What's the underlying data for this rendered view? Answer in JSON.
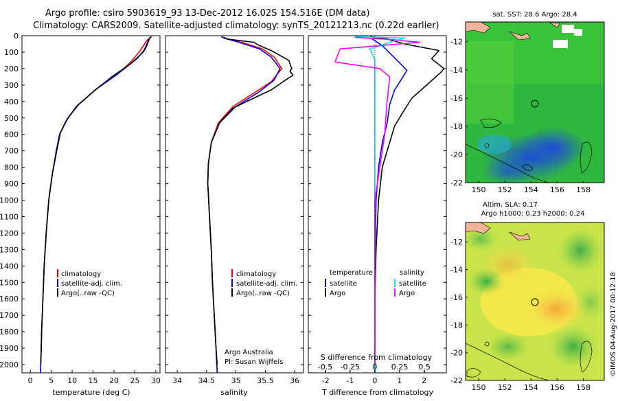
{
  "header": {
    "line1": "Argo profile: csiro 5903619_93 13-Dec-2012 16.02S 154.516E (DM data)",
    "line2": "Climatology: CARS2009. Satellite-adjusted climatology: synTS_20121213.nc (0.22d earlier)"
  },
  "colors": {
    "climatology": "#ff0000",
    "satellite": "#0000ff",
    "argo": "#000000",
    "sal_satellite": "#00e0ff",
    "sal_argo": "#ff00ff"
  },
  "depth_ticks": [
    "0",
    "100",
    "200",
    "300",
    "400",
    "500",
    "600",
    "700",
    "800",
    "900",
    "1000",
    "1100",
    "1200",
    "1300",
    "1400",
    "1500",
    "1600",
    "1700",
    "1800",
    "1900",
    "2000"
  ],
  "panels": {
    "temperature": {
      "xlabel": "temperature (deg C)",
      "xticks": [
        "0",
        "5",
        "10",
        "15",
        "20",
        "25",
        "30"
      ],
      "legend": [
        "climatology",
        "satellite-adj. clim.",
        "Argo(..raw -QC)"
      ]
    },
    "salinity": {
      "xlabel": "salinity",
      "xticks": [
        "34",
        "34.5",
        "35",
        "35.5",
        "36"
      ],
      "legend": [
        "climatology",
        "satellite-adj. clim.",
        "Argo(..raw -QC)"
      ],
      "note1": "Argo Australia",
      "note2": "PI: Susan Wijffels"
    },
    "difference": {
      "xlabel_bottom": "T difference from climatology",
      "xlabel_top": "S difference from climatology",
      "t_ticks": [
        "-2",
        "-1",
        "0",
        "1",
        "2"
      ],
      "s_ticks": [
        "-0.5",
        "-0.25",
        "0",
        "0.25",
        "0.5"
      ],
      "legend_temp_title": "temperature",
      "legend_sal_title": "salinity",
      "legend_satellite": "satellite",
      "legend_argo": "Argo"
    },
    "sst_map": {
      "title": "sat. SST: 28.6  Argo: 28.4",
      "lat_ticks": [
        "-12",
        "-14",
        "-16",
        "-18",
        "-20",
        "-22"
      ],
      "lon_ticks": [
        "150",
        "152",
        "154",
        "156",
        "158"
      ]
    },
    "sla_map": {
      "title1": "Altim. SLA: 0.17",
      "title2": "Argo h1000: 0.23  h2000: 0.24",
      "lat_ticks": [
        "-12",
        "-14",
        "-16",
        "-18",
        "-20",
        "-22"
      ],
      "lon_ticks": [
        "150",
        "152",
        "154",
        "156",
        "158"
      ]
    }
  },
  "watermark": "©IMOS 04-Aug-2017 00:12:18",
  "chart_data": [
    {
      "type": "line",
      "title": "",
      "xlabel": "temperature (deg C)",
      "ylabel": "",
      "xlim": [
        -2,
        31
      ],
      "ylim": [
        2050,
        0
      ],
      "series": [
        {
          "name": "climatology",
          "points": [
            [
              29,
              5
            ],
            [
              28,
              25
            ],
            [
              26,
              100
            ],
            [
              24,
              160
            ],
            [
              21,
              230
            ],
            [
              16,
              320
            ],
            [
              11,
              430
            ],
            [
              8.5,
              520
            ],
            [
              7,
              600
            ],
            [
              6.2,
              700
            ],
            [
              5.2,
              850
            ],
            [
              4.4,
              1000
            ],
            [
              3.8,
              1200
            ],
            [
              3.3,
              1400
            ],
            [
              3,
              1600
            ],
            [
              2.7,
              1800
            ],
            [
              2.5,
              2000
            ],
            [
              2.4,
              2050
            ]
          ]
        },
        {
          "name": "satellite-adj. clim.",
          "points": [
            [
              28.8,
              5
            ],
            [
              28.2,
              30
            ],
            [
              27,
              100
            ],
            [
              24,
              170
            ],
            [
              20.5,
              240
            ],
            [
              15.5,
              330
            ],
            [
              11,
              430
            ],
            [
              8.5,
              520
            ],
            [
              7,
              600
            ],
            [
              6.2,
              700
            ],
            [
              5.2,
              850
            ],
            [
              4.4,
              1000
            ],
            [
              3.8,
              1200
            ],
            [
              3.3,
              1400
            ],
            [
              3,
              1600
            ],
            [
              2.7,
              1800
            ],
            [
              2.5,
              2000
            ],
            [
              2.4,
              2050
            ]
          ]
        },
        {
          "name": "Argo(..raw -QC)",
          "points": [
            [
              28.6,
              10
            ],
            [
              28.3,
              30
            ],
            [
              27.5,
              80
            ],
            [
              25.5,
              140
            ],
            [
              23.5,
              180
            ],
            [
              20,
              240
            ],
            [
              15.5,
              330
            ],
            [
              11.5,
              420
            ],
            [
              9,
              500
            ],
            [
              7.2,
              590
            ],
            [
              6.3,
              700
            ],
            [
              5.2,
              850
            ],
            [
              4.4,
              1000
            ],
            [
              3.8,
              1200
            ],
            [
              3.3,
              1400
            ],
            [
              3,
              1600
            ],
            [
              2.7,
              1800
            ],
            [
              2.5,
              2000
            ]
          ]
        }
      ]
    },
    {
      "type": "line",
      "title": "",
      "xlabel": "salinity",
      "ylabel": "",
      "xlim": [
        33.8,
        36.15
      ],
      "ylim": [
        2050,
        0
      ],
      "series": [
        {
          "name": "climatology",
          "points": [
            [
              34.75,
              5
            ],
            [
              34.8,
              15
            ],
            [
              35.1,
              40
            ],
            [
              35.45,
              80
            ],
            [
              35.65,
              130
            ],
            [
              35.78,
              200
            ],
            [
              35.6,
              280
            ],
            [
              35.3,
              350
            ],
            [
              34.95,
              430
            ],
            [
              34.7,
              530
            ],
            [
              34.58,
              650
            ],
            [
              34.53,
              780
            ],
            [
              34.52,
              900
            ],
            [
              34.55,
              1100
            ],
            [
              34.58,
              1300
            ],
            [
              34.6,
              1500
            ],
            [
              34.63,
              1700
            ],
            [
              34.66,
              1900
            ],
            [
              34.68,
              2050
            ]
          ]
        },
        {
          "name": "satellite-adj. clim.",
          "points": [
            [
              34.75,
              5
            ],
            [
              34.8,
              15
            ],
            [
              35.05,
              40
            ],
            [
              35.4,
              80
            ],
            [
              35.6,
              130
            ],
            [
              35.75,
              200
            ],
            [
              35.65,
              270
            ],
            [
              35.4,
              340
            ],
            [
              35.0,
              430
            ],
            [
              34.72,
              530
            ],
            [
              34.58,
              650
            ],
            [
              34.53,
              780
            ],
            [
              34.52,
              900
            ],
            [
              34.55,
              1100
            ],
            [
              34.58,
              1300
            ],
            [
              34.6,
              1500
            ],
            [
              34.63,
              1700
            ],
            [
              34.66,
              1900
            ],
            [
              34.68,
              2050
            ]
          ]
        },
        {
          "name": "Argo(..raw -QC)",
          "points": [
            [
              34.8,
              10
            ],
            [
              34.85,
              20
            ],
            [
              35.3,
              40
            ],
            [
              35.4,
              60
            ],
            [
              35.6,
              90
            ],
            [
              35.9,
              150
            ],
            [
              35.95,
              200
            ],
            [
              35.92,
              215
            ],
            [
              35.97,
              240
            ],
            [
              35.8,
              280
            ],
            [
              35.6,
              330
            ],
            [
              35.3,
              380
            ],
            [
              34.95,
              440
            ],
            [
              34.72,
              530
            ],
            [
              34.58,
              650
            ],
            [
              34.53,
              780
            ],
            [
              34.52,
              900
            ],
            [
              34.55,
              1100
            ],
            [
              34.58,
              1300
            ],
            [
              34.6,
              1500
            ],
            [
              34.63,
              1700
            ],
            [
              34.66,
              1900
            ],
            [
              34.68,
              2000
            ]
          ]
        }
      ]
    },
    {
      "type": "line",
      "title": "",
      "xlabel": "T difference from climatology",
      "ylabel": "",
      "xlim": [
        -2.7,
        2.9
      ],
      "ylim": [
        2050,
        0
      ],
      "series": [
        {
          "name": "satellite",
          "points": [
            [
              0,
              5
            ],
            [
              -0.1,
              20
            ],
            [
              0.3,
              60
            ],
            [
              0.7,
              120
            ],
            [
              1.3,
              210
            ],
            [
              1.1,
              260
            ],
            [
              0.8,
              330
            ],
            [
              0.6,
              420
            ],
            [
              0.5,
              530
            ],
            [
              0.3,
              650
            ],
            [
              0.15,
              800
            ],
            [
              0.05,
              1000
            ],
            [
              0,
              1400
            ],
            [
              0,
              2050
            ]
          ]
        },
        {
          "name": "Argo",
          "points": [
            [
              -0.2,
              5
            ],
            [
              0.5,
              20
            ],
            [
              1.2,
              50
            ],
            [
              2.6,
              90
            ],
            [
              2.3,
              140
            ],
            [
              2.8,
              200
            ],
            [
              2.7,
              220
            ],
            [
              2.1,
              300
            ],
            [
              1.5,
              380
            ],
            [
              1.2,
              450
            ],
            [
              0.8,
              550
            ],
            [
              0.6,
              650
            ],
            [
              0.3,
              800
            ],
            [
              0.15,
              1000
            ],
            [
              0.05,
              1300
            ],
            [
              0,
              1600
            ],
            [
              0,
              2000
            ]
          ]
        }
      ]
    },
    {
      "type": "line",
      "title": "",
      "xlabel": "S difference from climatology",
      "ylabel": "",
      "xlim": [
        -0.67,
        0.72
      ],
      "ylim": [
        2050,
        0
      ],
      "series": [
        {
          "name": "satellite",
          "points": [
            [
              -0.2,
              5
            ],
            [
              0.3,
              15
            ],
            [
              0.15,
              40
            ],
            [
              -0.05,
              80
            ],
            [
              0,
              150
            ],
            [
              0,
              300
            ],
            [
              0,
              500
            ],
            [
              0,
              800
            ],
            [
              0,
              1100
            ],
            [
              0,
              1500
            ],
            [
              0,
              2050
            ]
          ]
        },
        {
          "name": "Argo",
          "points": [
            [
              -0.2,
              10
            ],
            [
              0.2,
              25
            ],
            [
              0.45,
              40
            ],
            [
              -0.35,
              80
            ],
            [
              -0.4,
              160
            ],
            [
              0.05,
              200
            ],
            [
              0.15,
              250
            ],
            [
              0.12,
              420
            ],
            [
              0.1,
              600
            ],
            [
              0.05,
              800
            ],
            [
              0,
              1000
            ],
            [
              0,
              1300
            ],
            [
              0,
              1600
            ],
            [
              0,
              2000
            ]
          ]
        }
      ]
    }
  ]
}
